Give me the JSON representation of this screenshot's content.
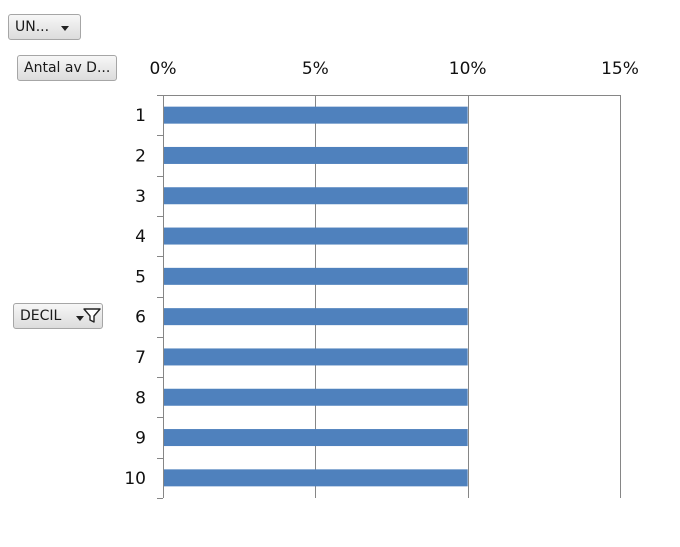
{
  "filters": {
    "un_label": "UN...",
    "antal_label": "Antal av D...",
    "decil_label": "DECIL"
  },
  "icons": {
    "dropdown": "chevron-down-icon",
    "filter": "funnel-filter-icon"
  },
  "colors": {
    "bar": "#4f81bd",
    "gridline": "#868686",
    "axis": "#868686"
  },
  "chart_data": {
    "type": "bar",
    "orientation": "horizontal",
    "categories": [
      "1",
      "2",
      "3",
      "4",
      "5",
      "6",
      "7",
      "8",
      "9",
      "10"
    ],
    "values": [
      10,
      10,
      10,
      10,
      10,
      10,
      10,
      10,
      10,
      10
    ],
    "value_unit": "%",
    "xlim": [
      0,
      15
    ],
    "xticks": [
      0,
      5,
      10,
      15
    ],
    "xtick_labels": [
      "0%",
      "5%",
      "10%",
      "15%"
    ],
    "x_axis_position": "top",
    "grid": true
  }
}
